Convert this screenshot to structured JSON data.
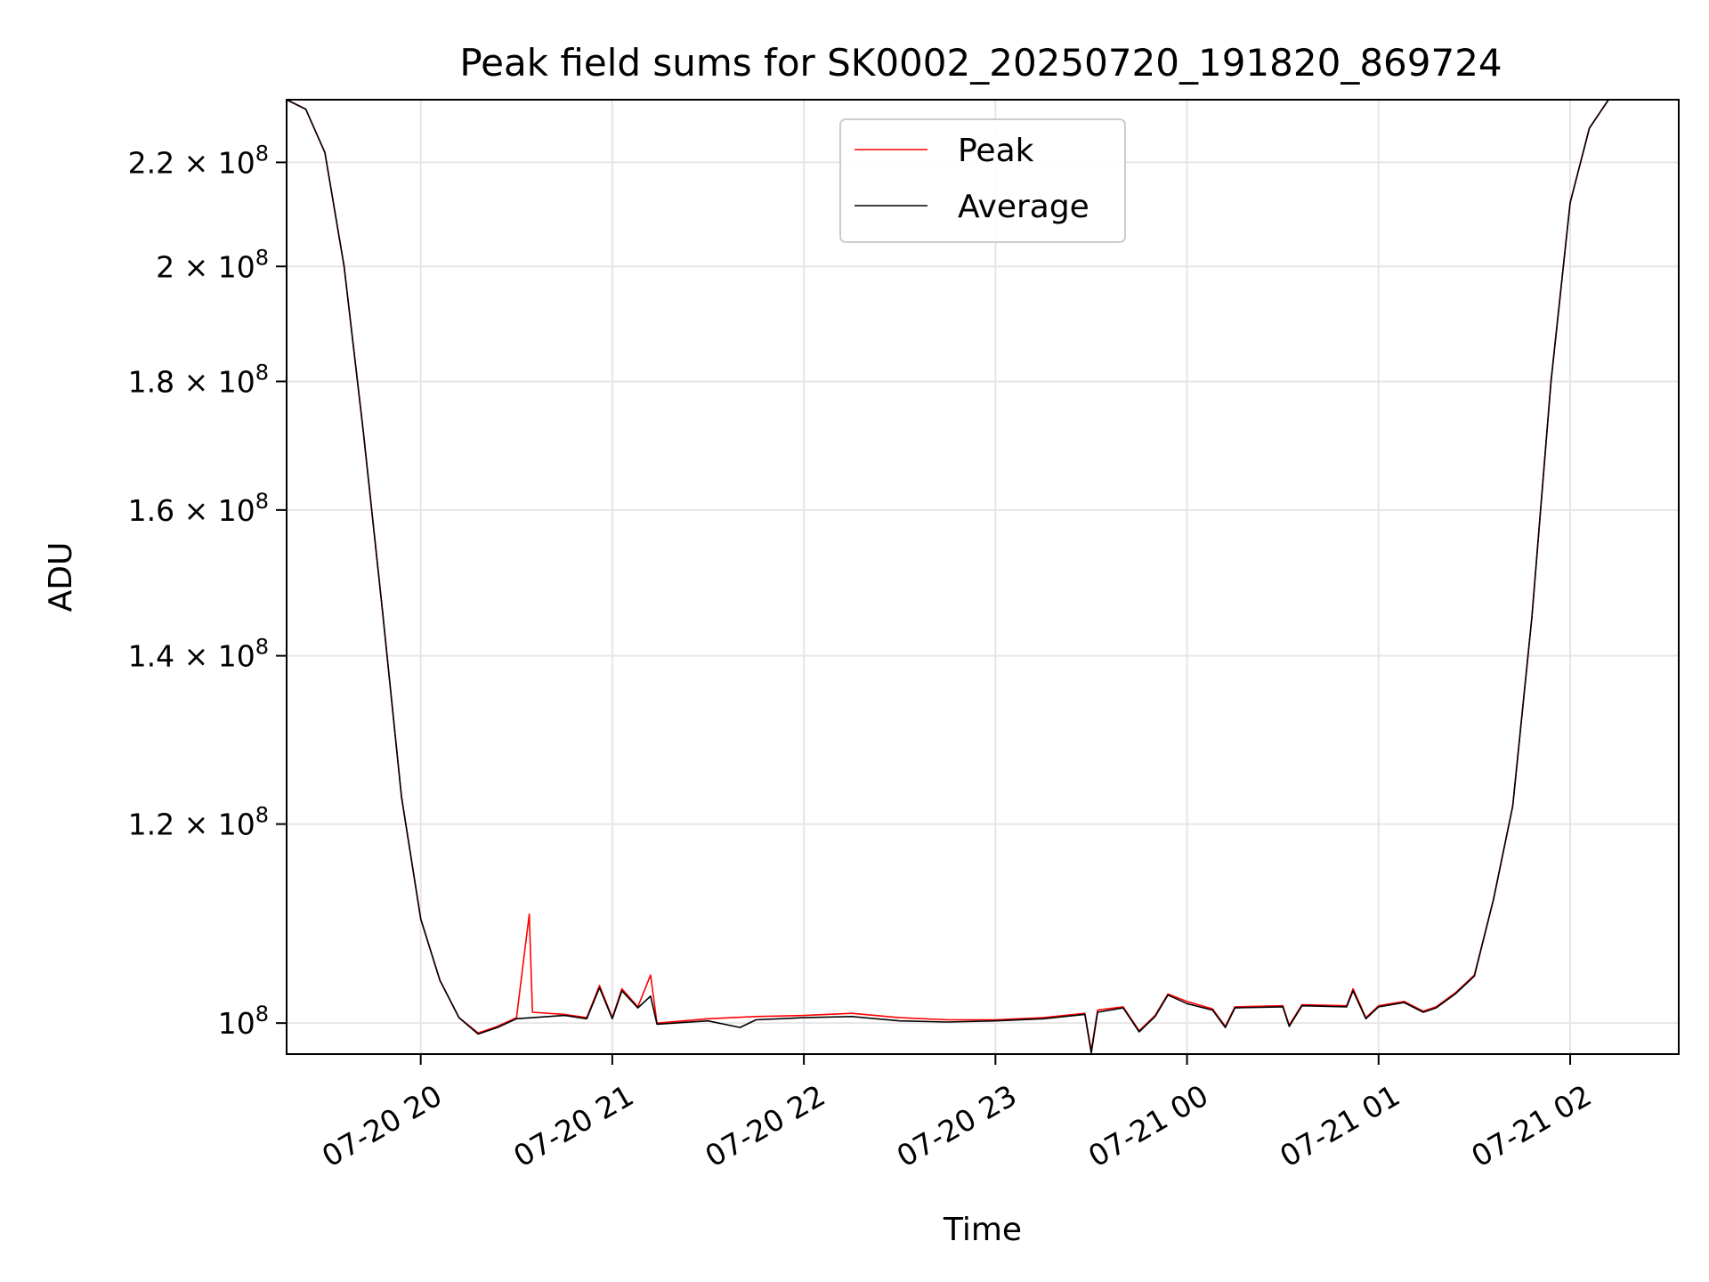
{
  "chart_data": {
    "type": "line",
    "title": "Peak field sums for SK0002_20250720_191820_869724",
    "xlabel": "Time",
    "ylabel": "ADU",
    "y_scale": "log",
    "grid": true,
    "legend_placement": "upper center",
    "x_range": [
      "2025-07-20 19:18",
      "2025-07-21 02:34"
    ],
    "ylim": [
      97200000,
      233000000
    ],
    "x_ticks": [
      {
        "value": "2025-07-20 20:00",
        "label": "07-20 20"
      },
      {
        "value": "2025-07-20 21:00",
        "label": "07-20 21"
      },
      {
        "value": "2025-07-20 22:00",
        "label": "07-20 22"
      },
      {
        "value": "2025-07-20 23:00",
        "label": "07-20 23"
      },
      {
        "value": "2025-07-21 00:00",
        "label": "07-21 00"
      },
      {
        "value": "2025-07-21 01:00",
        "label": "07-21 01"
      },
      {
        "value": "2025-07-21 02:00",
        "label": "07-21 02"
      }
    ],
    "y_ticks": [
      {
        "value": 100000000,
        "mantissa": "",
        "exponent": "8"
      },
      {
        "value": 120000000,
        "mantissa": "1.2",
        "exponent": "8"
      },
      {
        "value": 140000000,
        "mantissa": "1.4",
        "exponent": "8"
      },
      {
        "value": 160000000,
        "mantissa": "1.6",
        "exponent": "8"
      },
      {
        "value": 180000000,
        "mantissa": "1.8",
        "exponent": "8"
      },
      {
        "value": 200000000,
        "mantissa": "2",
        "exponent": "8"
      },
      {
        "value": 220000000,
        "mantissa": "2.2",
        "exponent": "8"
      }
    ],
    "series": [
      {
        "name": "Peak",
        "color": "#ff0000",
        "points": [
          [
            "2025-07-20 19:18",
            233000000
          ],
          [
            "2025-07-20 19:24",
            231000000
          ],
          [
            "2025-07-20 19:30",
            222000000
          ],
          [
            "2025-07-20 19:36",
            200000000
          ],
          [
            "2025-07-20 19:42",
            172000000
          ],
          [
            "2025-07-20 19:48",
            146000000
          ],
          [
            "2025-07-20 19:54",
            123000000
          ],
          [
            "2025-07-20 20:00",
            110000000
          ],
          [
            "2025-07-20 20:06",
            104000000
          ],
          [
            "2025-07-20 20:12",
            100500000
          ],
          [
            "2025-07-20 20:18",
            99100000
          ],
          [
            "2025-07-20 20:24",
            99700000
          ],
          [
            "2025-07-20 20:30",
            100500000
          ],
          [
            "2025-07-20 20:34",
            110500000
          ],
          [
            "2025-07-20 20:35",
            101000000
          ],
          [
            "2025-07-20 20:45",
            100800000
          ],
          [
            "2025-07-20 20:52",
            100500000
          ],
          [
            "2025-07-20 20:56",
            103500000
          ],
          [
            "2025-07-20 21:00",
            100500000
          ],
          [
            "2025-07-20 21:03",
            103200000
          ],
          [
            "2025-07-20 21:08",
            101500000
          ],
          [
            "2025-07-20 21:12",
            104500000
          ],
          [
            "2025-07-20 21:14",
            100000000
          ],
          [
            "2025-07-20 21:30",
            100400000
          ],
          [
            "2025-07-20 21:45",
            100600000
          ],
          [
            "2025-07-20 22:00",
            100700000
          ],
          [
            "2025-07-20 22:15",
            100900000
          ],
          [
            "2025-07-20 22:30",
            100500000
          ],
          [
            "2025-07-20 22:45",
            100300000
          ],
          [
            "2025-07-20 23:00",
            100300000
          ],
          [
            "2025-07-20 23:15",
            100500000
          ],
          [
            "2025-07-20 23:28",
            100900000
          ],
          [
            "2025-07-20 23:30",
            97500000
          ],
          [
            "2025-07-20 23:32",
            101200000
          ],
          [
            "2025-07-20 23:40",
            101500000
          ],
          [
            "2025-07-20 23:45",
            99300000
          ],
          [
            "2025-07-20 23:50",
            100700000
          ],
          [
            "2025-07-20 23:54",
            102700000
          ],
          [
            "2025-07-21 00:00",
            102000000
          ],
          [
            "2025-07-21 00:08",
            101300000
          ],
          [
            "2025-07-21 00:12",
            99700000
          ],
          [
            "2025-07-21 00:15",
            101500000
          ],
          [
            "2025-07-21 00:30",
            101600000
          ],
          [
            "2025-07-21 00:32",
            99800000
          ],
          [
            "2025-07-21 00:36",
            101700000
          ],
          [
            "2025-07-21 00:50",
            101600000
          ],
          [
            "2025-07-21 00:52",
            103200000
          ],
          [
            "2025-07-21 00:56",
            100500000
          ],
          [
            "2025-07-21 01:00",
            101600000
          ],
          [
            "2025-07-21 01:08",
            102000000
          ],
          [
            "2025-07-21 01:14",
            101100000
          ],
          [
            "2025-07-21 01:18",
            101500000
          ],
          [
            "2025-07-21 01:24",
            102800000
          ],
          [
            "2025-07-21 01:30",
            104500000
          ],
          [
            "2025-07-21 01:36",
            112000000
          ],
          [
            "2025-07-21 01:42",
            122000000
          ],
          [
            "2025-07-21 01:48",
            145000000
          ],
          [
            "2025-07-21 01:54",
            180000000
          ],
          [
            "2025-07-21 02:00",
            212000000
          ],
          [
            "2025-07-21 02:06",
            227000000
          ],
          [
            "2025-07-21 02:12",
            233000000
          ],
          [
            "2025-07-21 02:34",
            233000000
          ]
        ]
      },
      {
        "name": "Average",
        "color": "#000000",
        "points": [
          [
            "2025-07-20 19:18",
            233000000
          ],
          [
            "2025-07-20 19:24",
            231000000
          ],
          [
            "2025-07-20 19:30",
            222000000
          ],
          [
            "2025-07-20 19:36",
            200000000
          ],
          [
            "2025-07-20 19:42",
            172000000
          ],
          [
            "2025-07-20 19:48",
            146000000
          ],
          [
            "2025-07-20 19:54",
            123000000
          ],
          [
            "2025-07-20 20:00",
            110000000
          ],
          [
            "2025-07-20 20:06",
            104000000
          ],
          [
            "2025-07-20 20:12",
            100500000
          ],
          [
            "2025-07-20 20:18",
            99000000
          ],
          [
            "2025-07-20 20:24",
            99600000
          ],
          [
            "2025-07-20 20:30",
            100400000
          ],
          [
            "2025-07-20 20:45",
            100700000
          ],
          [
            "2025-07-20 20:52",
            100400000
          ],
          [
            "2025-07-20 20:56",
            103300000
          ],
          [
            "2025-07-20 21:00",
            100400000
          ],
          [
            "2025-07-20 21:03",
            103000000
          ],
          [
            "2025-07-20 21:08",
            101400000
          ],
          [
            "2025-07-20 21:12",
            102500000
          ],
          [
            "2025-07-20 21:14",
            99900000
          ],
          [
            "2025-07-20 21:30",
            100200000
          ],
          [
            "2025-07-20 21:40",
            99600000
          ],
          [
            "2025-07-20 21:45",
            100300000
          ],
          [
            "2025-07-20 22:00",
            100500000
          ],
          [
            "2025-07-20 22:15",
            100600000
          ],
          [
            "2025-07-20 22:30",
            100200000
          ],
          [
            "2025-07-20 22:45",
            100100000
          ],
          [
            "2025-07-20 23:00",
            100200000
          ],
          [
            "2025-07-20 23:15",
            100400000
          ],
          [
            "2025-07-20 23:28",
            100800000
          ],
          [
            "2025-07-20 23:30",
            97300000
          ],
          [
            "2025-07-20 23:32",
            101000000
          ],
          [
            "2025-07-20 23:40",
            101400000
          ],
          [
            "2025-07-20 23:45",
            99200000
          ],
          [
            "2025-07-20 23:50",
            100600000
          ],
          [
            "2025-07-20 23:54",
            102600000
          ],
          [
            "2025-07-21 00:00",
            101800000
          ],
          [
            "2025-07-21 00:08",
            101200000
          ],
          [
            "2025-07-21 00:12",
            99600000
          ],
          [
            "2025-07-21 00:15",
            101400000
          ],
          [
            "2025-07-21 00:30",
            101500000
          ],
          [
            "2025-07-21 00:32",
            99700000
          ],
          [
            "2025-07-21 00:36",
            101600000
          ],
          [
            "2025-07-21 00:50",
            101500000
          ],
          [
            "2025-07-21 00:52",
            103000000
          ],
          [
            "2025-07-21 00:56",
            100400000
          ],
          [
            "2025-07-21 01:00",
            101500000
          ],
          [
            "2025-07-21 01:08",
            101900000
          ],
          [
            "2025-07-21 01:14",
            101000000
          ],
          [
            "2025-07-21 01:18",
            101400000
          ],
          [
            "2025-07-21 01:24",
            102700000
          ],
          [
            "2025-07-21 01:30",
            104400000
          ],
          [
            "2025-07-21 01:36",
            112000000
          ],
          [
            "2025-07-21 01:42",
            122000000
          ],
          [
            "2025-07-21 01:48",
            145000000
          ],
          [
            "2025-07-21 01:54",
            180000000
          ],
          [
            "2025-07-21 02:00",
            212000000
          ],
          [
            "2025-07-21 02:06",
            227000000
          ],
          [
            "2025-07-21 02:12",
            233000000
          ],
          [
            "2025-07-21 02:34",
            233000000
          ]
        ]
      }
    ]
  }
}
